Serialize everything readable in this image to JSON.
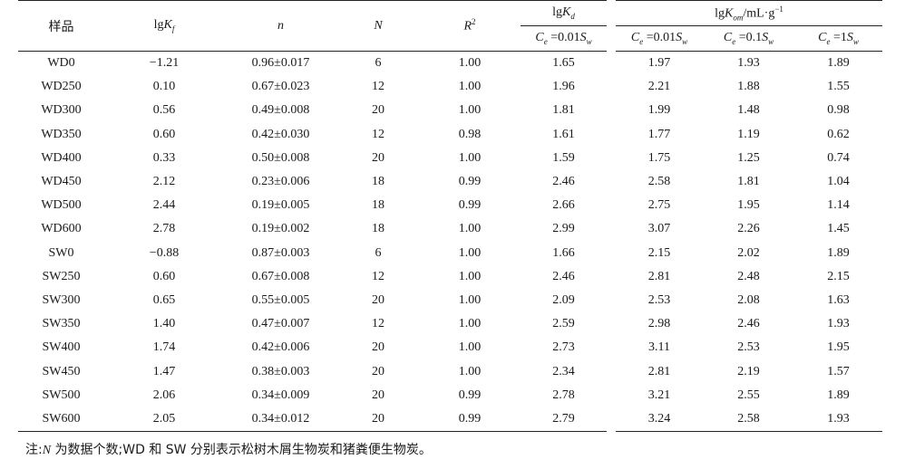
{
  "table": {
    "headers": {
      "sample": "样品",
      "lgKf": {
        "base": "lg",
        "var": "K",
        "sub": "f"
      },
      "n": "n",
      "N": "N",
      "R2": {
        "var": "R",
        "sup": "2"
      },
      "lgKd": {
        "base": "lg",
        "var": "K",
        "sub": "d"
      },
      "lgKom": {
        "base": "lg",
        "var": "K",
        "sub": "om",
        "unit": "/mL·g",
        "sup": "−1"
      },
      "cond_kd": {
        "var": "C",
        "sub": "e",
        "eq": " =0.01",
        "svar": "S",
        "ssub": "w"
      },
      "cond_1": {
        "var": "C",
        "sub": "e",
        "eq": " =0.01",
        "svar": "S",
        "ssub": "w"
      },
      "cond_2": {
        "var": "C",
        "sub": "e",
        "eq": " =0.1",
        "svar": "S",
        "ssub": "w"
      },
      "cond_3": {
        "var": "C",
        "sub": "e",
        "eq": " =1",
        "svar": "S",
        "ssub": "w"
      }
    },
    "rows": [
      [
        "WD0",
        "−1.21",
        "0.96±0.017",
        "6",
        "1.00",
        "1.65",
        "1.97",
        "1.93",
        "1.89"
      ],
      [
        "WD250",
        "0.10",
        "0.67±0.023",
        "12",
        "1.00",
        "1.96",
        "2.21",
        "1.88",
        "1.55"
      ],
      [
        "WD300",
        "0.56",
        "0.49±0.008",
        "20",
        "1.00",
        "1.81",
        "1.99",
        "1.48",
        "0.98"
      ],
      [
        "WD350",
        "0.60",
        "0.42±0.030",
        "12",
        "0.98",
        "1.61",
        "1.77",
        "1.19",
        "0.62"
      ],
      [
        "WD400",
        "0.33",
        "0.50±0.008",
        "20",
        "1.00",
        "1.59",
        "1.75",
        "1.25",
        "0.74"
      ],
      [
        "WD450",
        "2.12",
        "0.23±0.006",
        "18",
        "0.99",
        "2.46",
        "2.58",
        "1.81",
        "1.04"
      ],
      [
        "WD500",
        "2.44",
        "0.19±0.005",
        "18",
        "0.99",
        "2.66",
        "2.75",
        "1.95",
        "1.14"
      ],
      [
        "WD600",
        "2.78",
        "0.19±0.002",
        "18",
        "1.00",
        "2.99",
        "3.07",
        "2.26",
        "1.45"
      ],
      [
        "SW0",
        "−0.88",
        "0.87±0.003",
        "6",
        "1.00",
        "1.66",
        "2.15",
        "2.02",
        "1.89"
      ],
      [
        "SW250",
        "0.60",
        "0.67±0.008",
        "12",
        "1.00",
        "2.46",
        "2.81",
        "2.48",
        "2.15"
      ],
      [
        "SW300",
        "0.65",
        "0.55±0.005",
        "20",
        "1.00",
        "2.09",
        "2.53",
        "2.08",
        "1.63"
      ],
      [
        "SW350",
        "1.40",
        "0.47±0.007",
        "12",
        "1.00",
        "2.59",
        "2.98",
        "2.46",
        "1.93"
      ],
      [
        "SW400",
        "1.74",
        "0.42±0.006",
        "20",
        "1.00",
        "2.73",
        "3.11",
        "2.53",
        "1.95"
      ],
      [
        "SW450",
        "1.47",
        "0.38±0.003",
        "20",
        "1.00",
        "2.34",
        "2.81",
        "2.19",
        "1.57"
      ],
      [
        "SW500",
        "2.06",
        "0.34±0.009",
        "20",
        "0.99",
        "2.78",
        "3.21",
        "2.55",
        "1.89"
      ],
      [
        "SW600",
        "2.05",
        "0.34±0.012",
        "20",
        "0.99",
        "2.79",
        "3.24",
        "2.58",
        "1.93"
      ]
    ]
  },
  "note": {
    "prefix": "注:",
    "var": "N",
    "text": " 为数据个数;WD 和 SW 分别表示松树木屑生物炭和猪粪便生物炭。"
  }
}
